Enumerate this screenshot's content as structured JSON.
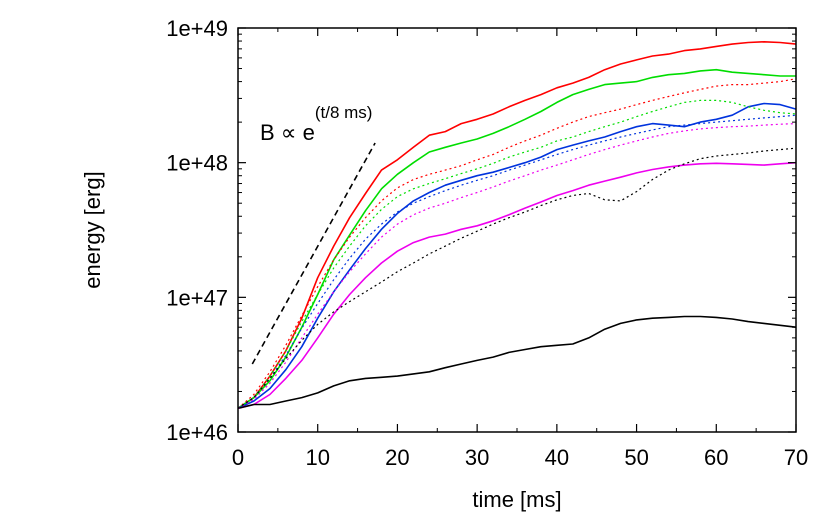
{
  "chart_data": {
    "type": "line",
    "title": "",
    "xlabel": "time [ms]",
    "ylabel": "energy [erg]",
    "xlim": [
      0,
      70
    ],
    "ylim": [
      1e+46,
      1e+49
    ],
    "yscale": "log",
    "grid": false,
    "x_ticks": [
      0,
      10,
      20,
      30,
      40,
      50,
      60,
      70
    ],
    "x_tick_labels": [
      "0",
      "10",
      "20",
      "30",
      "40",
      "50",
      "60",
      "70"
    ],
    "y_ticks": [
      1e+46,
      1e+47,
      1e+48,
      1e+49
    ],
    "y_tick_labels": [
      "1e+46",
      "1e+47",
      "1e+48",
      "1e+49"
    ],
    "annotation": {
      "base": "B ∝ e",
      "exponent": "(t/8 ms)",
      "line": {
        "x": [
          1.8,
          17.2
        ],
        "y": [
          3.2e+46,
          1.4e+48
        ],
        "color": "#000000",
        "dash": "dashed"
      }
    },
    "series": [
      {
        "color": "#ff0000",
        "dash": "solid",
        "x": [
          0,
          2,
          4,
          6,
          8,
          10,
          12,
          14,
          16,
          18,
          20,
          22,
          24,
          26,
          28,
          30,
          32,
          34,
          36,
          38,
          40,
          42,
          44,
          46,
          48,
          50,
          52,
          54,
          56,
          58,
          60,
          62,
          64,
          66,
          68,
          70
        ],
        "y": [
          1.5e+46,
          1.8e+46,
          2.6e+46,
          4e+46,
          7e+46,
          1.4e+47,
          2.4e+47,
          3.9e+47,
          5.9e+47,
          8.8e+47,
          1.05e+48,
          1.3e+48,
          1.6e+48,
          1.7e+48,
          1.95e+48,
          2.1e+48,
          2.3e+48,
          2.6e+48,
          2.9e+48,
          3.2e+48,
          3.6e+48,
          3.9e+48,
          4.3e+48,
          4.9e+48,
          5.4e+48,
          5.8e+48,
          6.2e+48,
          6.4e+48,
          6.8e+48,
          7e+48,
          7.3e+48,
          7.6e+48,
          7.8e+48,
          7.9e+48,
          7.8e+48,
          7.6e+48
        ]
      },
      {
        "color": "#00dd00",
        "dash": "solid",
        "x": [
          0,
          2,
          4,
          6,
          8,
          10,
          12,
          14,
          16,
          18,
          20,
          22,
          24,
          26,
          28,
          30,
          32,
          34,
          36,
          38,
          40,
          42,
          44,
          46,
          48,
          50,
          52,
          54,
          56,
          58,
          60,
          62,
          64,
          66,
          68,
          70
        ],
        "y": [
          1.5e+46,
          1.8e+46,
          2.4e+46,
          3.6e+46,
          6e+46,
          1.05e+47,
          1.9e+47,
          2.9e+47,
          4.4e+47,
          6.4e+47,
          8.2e+47,
          1e+48,
          1.2e+48,
          1.3e+48,
          1.4e+48,
          1.5e+48,
          1.65e+48,
          1.85e+48,
          2.1e+48,
          2.4e+48,
          2.8e+48,
          3.2e+48,
          3.5e+48,
          3.8e+48,
          3.9e+48,
          4e+48,
          4.3e+48,
          4.5e+48,
          4.6e+48,
          4.8e+48,
          4.9e+48,
          4.7e+48,
          4.6e+48,
          4.5e+48,
          4.4e+48,
          4.4e+48
        ]
      },
      {
        "color": "#0033dd",
        "dash": "solid",
        "x": [
          0,
          2,
          4,
          6,
          8,
          10,
          12,
          14,
          16,
          18,
          20,
          22,
          24,
          26,
          28,
          30,
          32,
          34,
          36,
          38,
          40,
          42,
          44,
          46,
          48,
          50,
          52,
          54,
          56,
          58,
          60,
          62,
          64,
          66,
          68,
          70
        ],
        "y": [
          1.5e+46,
          1.7e+46,
          2.1e+46,
          2.9e+46,
          4.3e+46,
          7e+46,
          1.1e+47,
          1.6e+47,
          2.3e+47,
          3.2e+47,
          4.2e+47,
          5.2e+47,
          6e+47,
          6.8e+47,
          7.4e+47,
          8e+47,
          8.5e+47,
          9.2e+47,
          1e+48,
          1.1e+48,
          1.25e+48,
          1.35e+48,
          1.45e+48,
          1.55e+48,
          1.7e+48,
          1.85e+48,
          1.95e+48,
          1.9e+48,
          1.85e+48,
          2e+48,
          2.1e+48,
          2.25e+48,
          2.6e+48,
          2.75e+48,
          2.7e+48,
          2.5e+48
        ]
      },
      {
        "color": "#ee00ee",
        "dash": "solid",
        "x": [
          0,
          2,
          4,
          6,
          8,
          10,
          12,
          14,
          16,
          18,
          20,
          22,
          24,
          26,
          28,
          30,
          32,
          34,
          36,
          38,
          40,
          42,
          44,
          46,
          48,
          50,
          52,
          54,
          56,
          58,
          60,
          62,
          64,
          66,
          68,
          70
        ],
        "y": [
          1.5e+46,
          1.6e+46,
          1.9e+46,
          2.5e+46,
          3.4e+46,
          5e+46,
          7.5e+46,
          1.05e+47,
          1.4e+47,
          1.8e+47,
          2.2e+47,
          2.55e+47,
          2.8e+47,
          2.95e+47,
          3.2e+47,
          3.4e+47,
          3.7e+47,
          4.1e+47,
          4.6e+47,
          5.1e+47,
          5.7e+47,
          6.2e+47,
          6.8e+47,
          7.3e+47,
          7.8e+47,
          8.4e+47,
          8.9e+47,
          9.3e+47,
          9.6e+47,
          9.8e+47,
          9.9e+47,
          9.8e+47,
          9.7e+47,
          9.6e+47,
          9.8e+47,
          1e+48
        ]
      },
      {
        "color": "#000000",
        "dash": "solid",
        "x": [
          0,
          2,
          4,
          6,
          8,
          10,
          12,
          14,
          16,
          18,
          20,
          22,
          24,
          26,
          28,
          30,
          32,
          34,
          36,
          38,
          40,
          42,
          44,
          46,
          48,
          50,
          52,
          54,
          56,
          58,
          60,
          62,
          64,
          66,
          68,
          70
        ],
        "y": [
          1.5e+46,
          1.6e+46,
          1.6e+46,
          1.7e+46,
          1.8e+46,
          1.95e+46,
          2.2e+46,
          2.4e+46,
          2.5e+46,
          2.55e+46,
          2.6e+46,
          2.7e+46,
          2.8e+46,
          3e+46,
          3.2e+46,
          3.4e+46,
          3.6e+46,
          3.9e+46,
          4.1e+46,
          4.3e+46,
          4.4e+46,
          4.5e+46,
          5e+46,
          5.8e+46,
          6.4e+46,
          6.8e+46,
          7e+46,
          7.1e+46,
          7.2e+46,
          7.2e+46,
          7.1e+46,
          6.9e+46,
          6.6e+46,
          6.4e+46,
          6.2e+46,
          6e+46
        ]
      },
      {
        "color": "#ff0000",
        "dash": "dotted",
        "x": [
          0,
          2,
          4,
          6,
          8,
          10,
          12,
          14,
          16,
          18,
          20,
          22,
          24,
          26,
          28,
          30,
          32,
          34,
          36,
          38,
          40,
          42,
          44,
          46,
          48,
          50,
          52,
          54,
          56,
          58,
          60,
          62,
          64,
          66,
          68,
          70
        ],
        "y": [
          1.5e+46,
          1.9e+46,
          2.8e+46,
          4.4e+46,
          7.3e+46,
          1.2e+47,
          1.9e+47,
          2.8e+47,
          3.9e+47,
          5.2e+47,
          6.5e+47,
          7.5e+47,
          8.2e+47,
          8.8e+47,
          9.5e+47,
          1.05e+48,
          1.15e+48,
          1.3e+48,
          1.45e+48,
          1.6e+48,
          1.8e+48,
          2e+48,
          2.2e+48,
          2.35e+48,
          2.5e+48,
          2.7e+48,
          2.9e+48,
          3.1e+48,
          3.3e+48,
          3.5e+48,
          3.7e+48,
          3.8e+48,
          3.8e+48,
          3.9e+48,
          4e+48,
          4.2e+48
        ]
      },
      {
        "color": "#00dd00",
        "dash": "dotted",
        "x": [
          0,
          2,
          4,
          6,
          8,
          10,
          12,
          14,
          16,
          18,
          20,
          22,
          24,
          26,
          28,
          30,
          32,
          34,
          36,
          38,
          40,
          42,
          44,
          46,
          48,
          50,
          52,
          54,
          56,
          58,
          60,
          62,
          64,
          66,
          68,
          70
        ],
        "y": [
          1.5e+46,
          1.8e+46,
          2.6e+46,
          4e+46,
          6.6e+46,
          1.05e+47,
          1.65e+47,
          2.4e+47,
          3.4e+47,
          4.5e+47,
          5.6e+47,
          6.4e+47,
          7e+47,
          7.6e+47,
          8.3e+47,
          9e+47,
          9.9e+47,
          1.1e+48,
          1.2e+48,
          1.3e+48,
          1.45e+48,
          1.55e+48,
          1.7e+48,
          1.85e+48,
          2e+48,
          2.2e+48,
          2.4e+48,
          2.6e+48,
          2.8e+48,
          2.9e+48,
          2.9e+48,
          2.8e+48,
          2.6e+48,
          2.45e+48,
          2.35e+48,
          2.3e+48
        ]
      },
      {
        "color": "#0033dd",
        "dash": "dotted",
        "x": [
          0,
          2,
          4,
          6,
          8,
          10,
          12,
          14,
          16,
          18,
          20,
          22,
          24,
          26,
          28,
          30,
          32,
          34,
          36,
          38,
          40,
          42,
          44,
          46,
          48,
          50,
          52,
          54,
          56,
          58,
          60,
          62,
          64,
          66,
          68,
          70
        ],
        "y": [
          1.5e+46,
          1.8e+46,
          2.5e+46,
          3.7e+46,
          5.9e+46,
          9e+46,
          1.35e+47,
          1.95e+47,
          2.7e+47,
          3.5e+47,
          4.3e+47,
          5e+47,
          5.6e+47,
          6.2e+47,
          6.8e+47,
          7.4e+47,
          8e+47,
          8.8e+47,
          9.6e+47,
          1.05e+48,
          1.15e+48,
          1.25e+48,
          1.35e+48,
          1.45e+48,
          1.55e+48,
          1.65e+48,
          1.75e+48,
          1.85e+48,
          1.9e+48,
          1.95e+48,
          2e+48,
          2.05e+48,
          2.1e+48,
          2.15e+48,
          2.2e+48,
          2.25e+48
        ]
      },
      {
        "color": "#ee00ee",
        "dash": "dotted",
        "x": [
          0,
          2,
          4,
          6,
          8,
          10,
          12,
          14,
          16,
          18,
          20,
          22,
          24,
          26,
          28,
          30,
          32,
          34,
          36,
          38,
          40,
          42,
          44,
          46,
          48,
          50,
          52,
          54,
          56,
          58,
          60,
          62,
          64,
          66,
          68,
          70
        ],
        "y": [
          1.5e+46,
          1.75e+46,
          2.3e+46,
          3.3e+46,
          5e+46,
          7.5e+46,
          1.1e+47,
          1.55e+47,
          2.1e+47,
          2.8e+47,
          3.5e+47,
          4.1e+47,
          4.6e+47,
          5e+47,
          5.5e+47,
          6e+47,
          6.6e+47,
          7.3e+47,
          8e+47,
          8.8e+47,
          9.6e+47,
          1.05e+48,
          1.15e+48,
          1.25e+48,
          1.35e+48,
          1.45e+48,
          1.55e+48,
          1.65e+48,
          1.72e+48,
          1.78e+48,
          1.82e+48,
          1.85e+48,
          1.87e+48,
          1.9e+48,
          1.93e+48,
          1.95e+48
        ]
      },
      {
        "color": "#000000",
        "dash": "dotted",
        "x": [
          0,
          2,
          4,
          6,
          8,
          10,
          12,
          14,
          16,
          18,
          20,
          22,
          24,
          26,
          28,
          30,
          32,
          34,
          36,
          38,
          40,
          42,
          44,
          46,
          48,
          50,
          52,
          54,
          56,
          58,
          60,
          62,
          64,
          66,
          68,
          70
        ],
        "y": [
          1.5e+46,
          1.8e+46,
          2.5e+46,
          3.5e+46,
          4.8e+46,
          6.3e+46,
          7.8e+46,
          9.3e+46,
          1.1e+47,
          1.3e+47,
          1.55e+47,
          1.8e+47,
          2.1e+47,
          2.4e+47,
          2.75e+47,
          3.1e+47,
          3.5e+47,
          3.9e+47,
          4.3e+47,
          4.8e+47,
          5.3e+47,
          5.7e+47,
          5.9e+47,
          5.3e+47,
          5.2e+47,
          6.1e+47,
          7.5e+47,
          8.8e+47,
          9.8e+47,
          1.07e+48,
          1.12e+48,
          1.15e+48,
          1.18e+48,
          1.22e+48,
          1.25e+48,
          1.28e+48
        ]
      }
    ]
  }
}
